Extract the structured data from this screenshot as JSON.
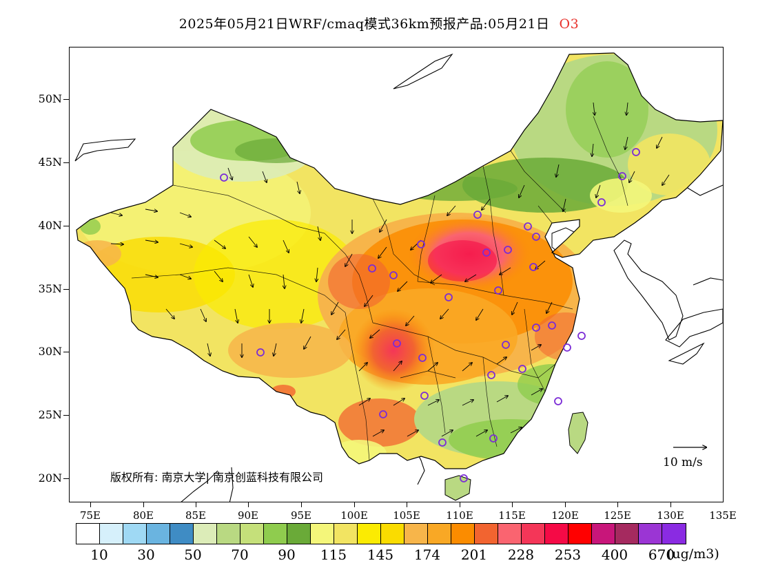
{
  "title": {
    "text": "2025年05月21日WRF/cmaq模式36km预报产品:05月21日",
    "pollutant": "O3"
  },
  "latitude_labels": [
    "50N",
    "45N",
    "40N",
    "35N",
    "30N",
    "25N",
    "20N"
  ],
  "longitude_labels": [
    "75E",
    "80E",
    "85E",
    "90E",
    "95E",
    "100E",
    "105E",
    "110E",
    "115E",
    "120E",
    "125E",
    "130E",
    "135E"
  ],
  "colorbar": {
    "colors": [
      "#ffffff",
      "#d6f0fb",
      "#9fd9f4",
      "#6ab4e0",
      "#3f8cc4",
      "#dcecb8",
      "#b9d982",
      "#c5e07a",
      "#8fcc4e",
      "#6aaa38",
      "#f4f67a",
      "#f2e462",
      "#fbeb02",
      "#fadc00",
      "#f7b54a",
      "#f9a825",
      "#fb8c00",
      "#f26430",
      "#fa6470",
      "#f43658",
      "#f50a46",
      "#ff0000",
      "#c8167a",
      "#a52a5f",
      "#9b35d4",
      "#8a2be2"
    ],
    "labels": [
      "10",
      "30",
      "50",
      "70",
      "90",
      "115",
      "145",
      "174",
      "201",
      "228",
      "253",
      "400",
      "670"
    ],
    "unit": "(ug/m3)"
  },
  "copyright": "版权所有: 南京大学| 南京创蓝科技有限公司",
  "wind_reference": "10 m/s",
  "legend_colors": {
    "station_marker": "#7b2cd6"
  }
}
